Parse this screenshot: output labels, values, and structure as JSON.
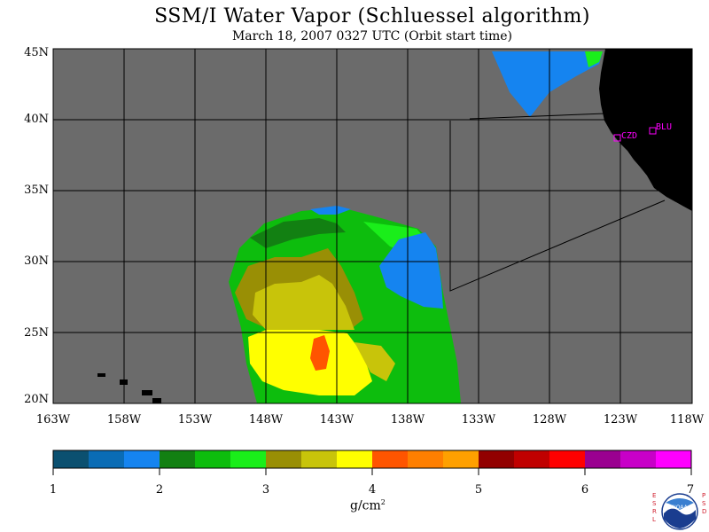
{
  "title": "SSM/I Water Vapor (Schluessel algorithm)",
  "subtitle": "March 18, 2007  0327 UTC  (Orbit start time)",
  "lat_labels": [
    "45N",
    "40N",
    "35N",
    "30N",
    "25N",
    "20N"
  ],
  "lon_labels": [
    "163W",
    "158W",
    "153W",
    "148W",
    "143W",
    "138W",
    "133W",
    "128W",
    "123W",
    "118W"
  ],
  "stations": [
    {
      "code": "CZD"
    },
    {
      "code": "BLU"
    }
  ],
  "colorbar": {
    "ticks": [
      "1",
      "2",
      "3",
      "4",
      "5",
      "6",
      "7"
    ],
    "unit": "g/cm",
    "unit_exp": "2",
    "colors": [
      "#0b5070",
      "#0a6cb5",
      "#1584f0",
      "#128012",
      "#0dbd0d",
      "#1aee1a",
      "#998f05",
      "#c8c40a",
      "#ffff00",
      "#ff5500",
      "#ff7f00",
      "#ffa000",
      "#920000",
      "#c00000",
      "#ff0000",
      "#9a0090",
      "#c800c8",
      "#ff00ff"
    ]
  },
  "logo": {
    "left_letters": [
      "E",
      "S",
      "R",
      "L"
    ],
    "right_letters": [
      "P",
      "S",
      "D"
    ],
    "name": "NOAA"
  },
  "colors": {
    "no_data": "#6b6b6b",
    "land": "#000000",
    "grid": "#000000",
    "station": "#ff00ff"
  }
}
